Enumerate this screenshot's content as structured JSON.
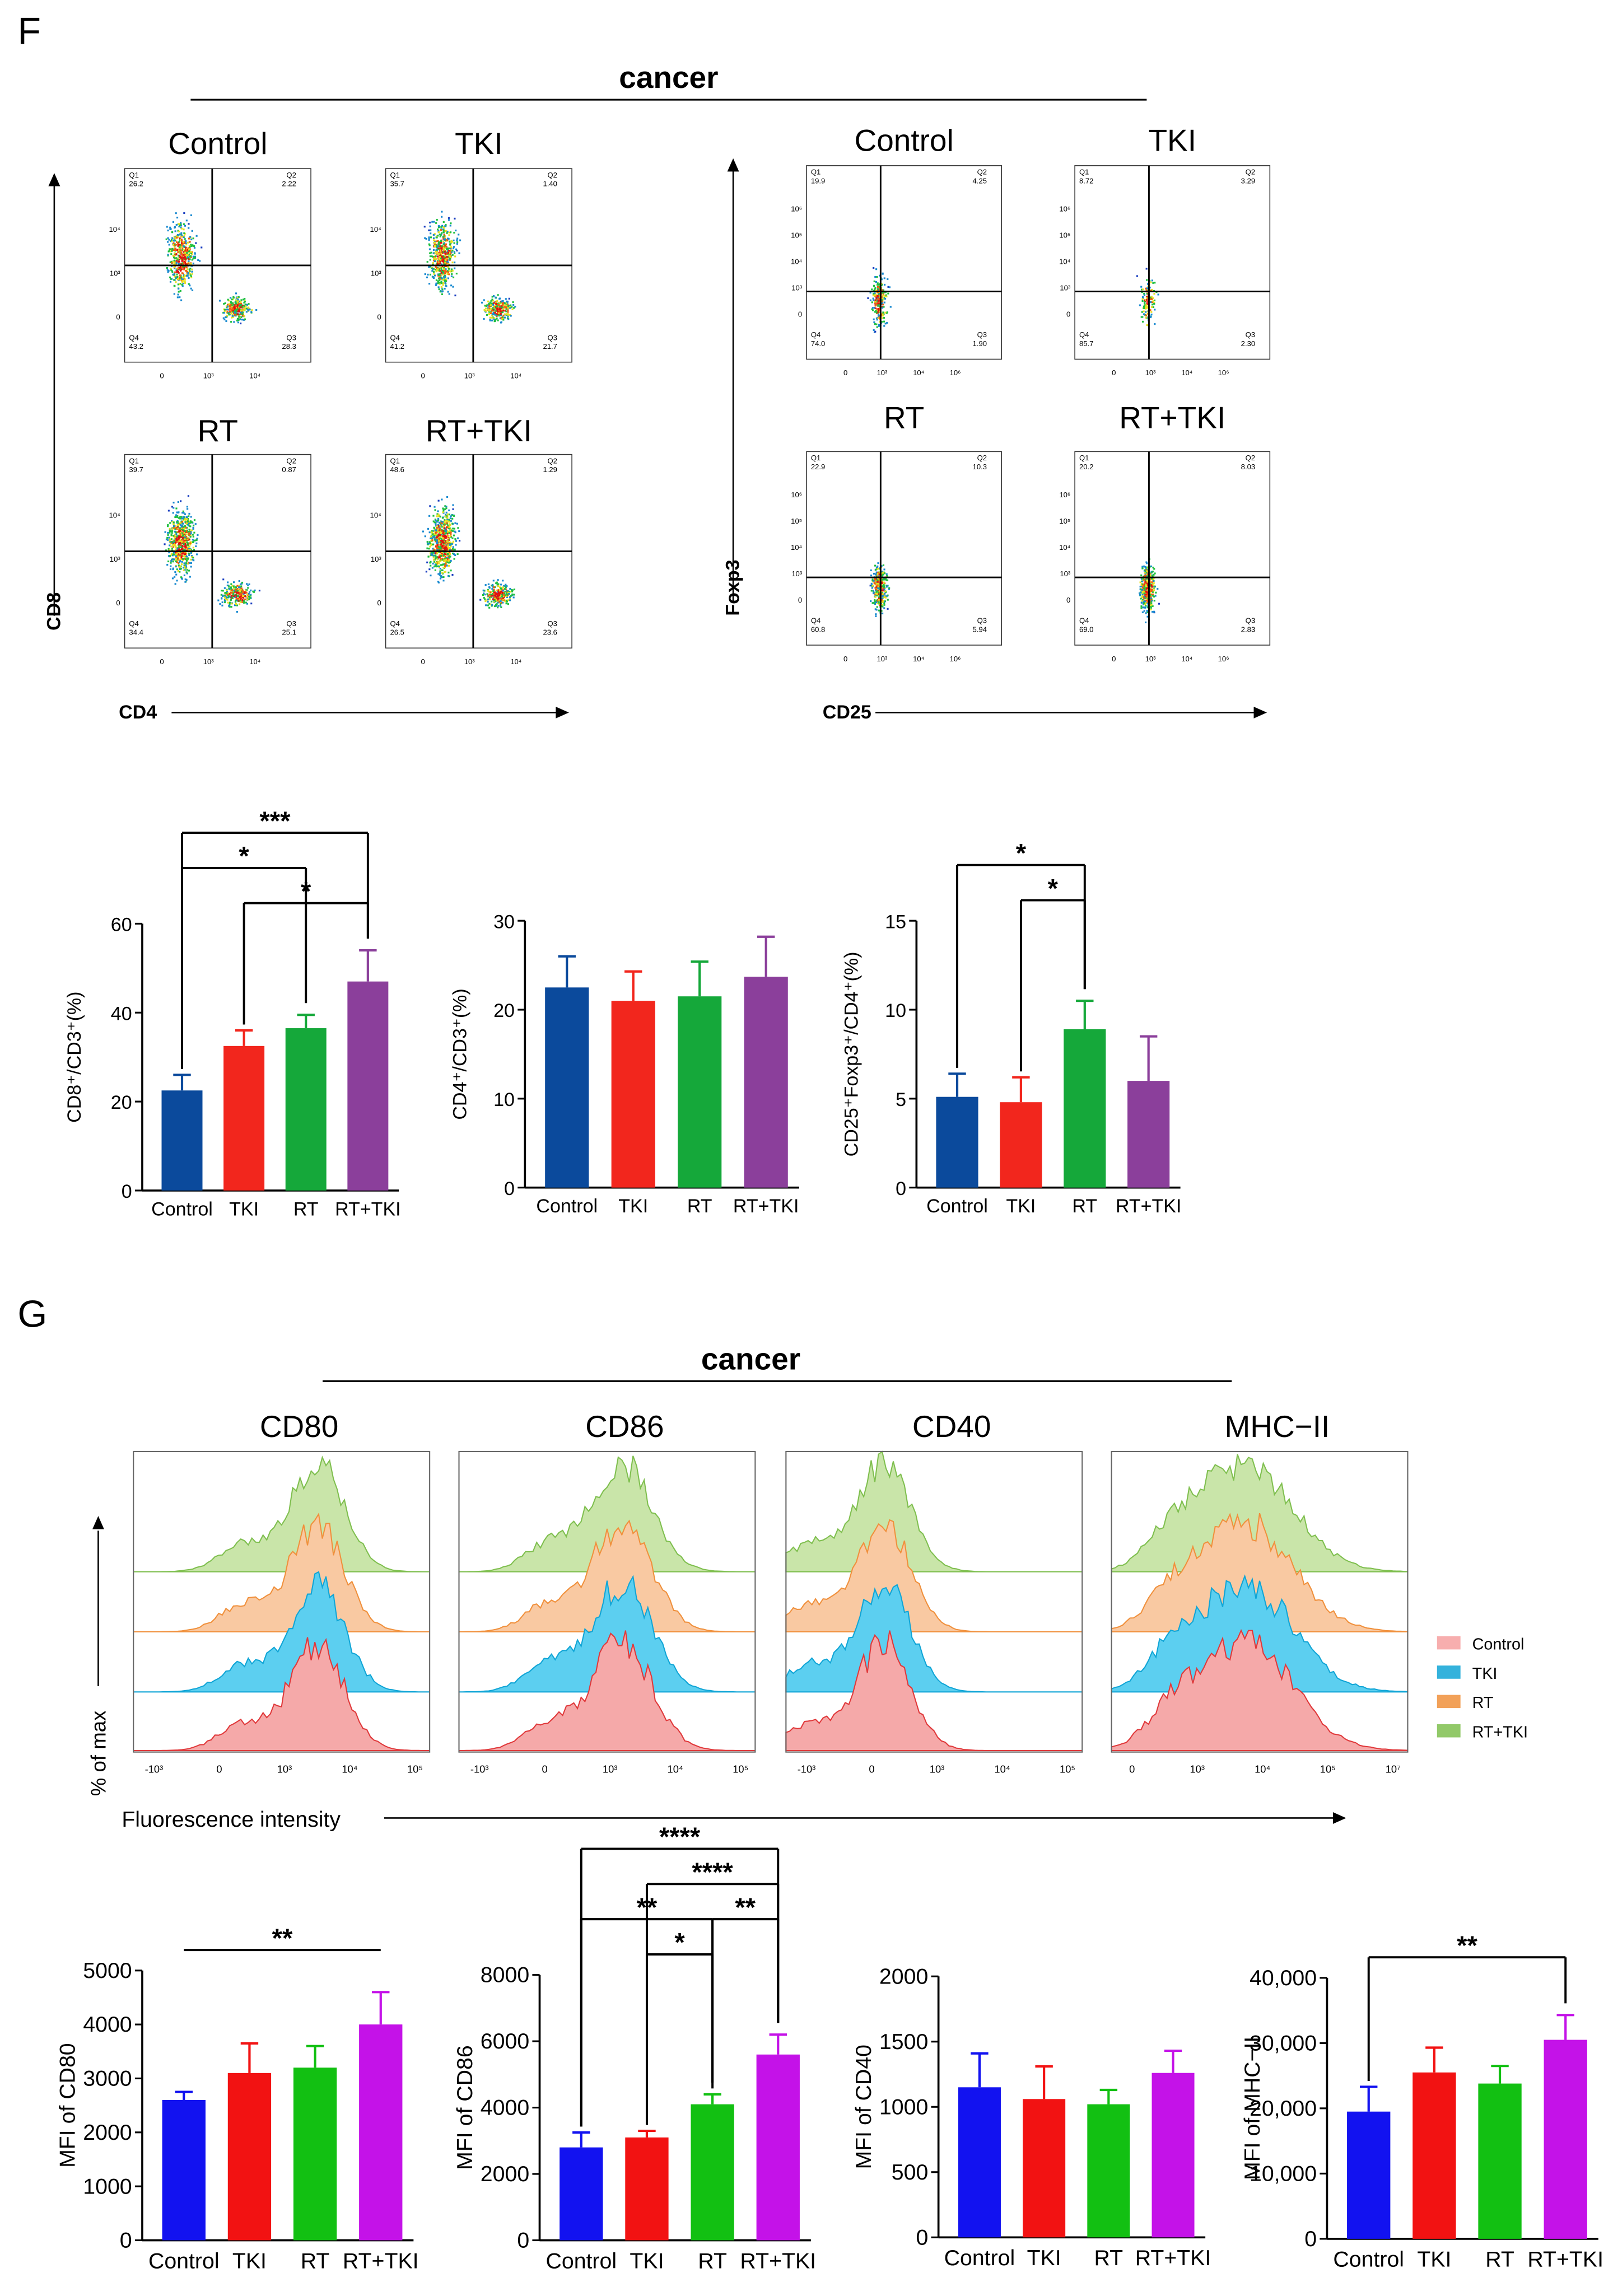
{
  "panel_labels": {
    "F": "F",
    "G": "G"
  },
  "flow": {
    "title": "cancer",
    "quadrant_names": [
      "Q1",
      "Q2",
      "Q3",
      "Q4"
    ],
    "left": {
      "xlabel": "CD4",
      "ylabel": "CD8",
      "xticks": [
        "0",
        "10³",
        "10⁴"
      ],
      "yticks": [
        "0",
        "10³",
        "10⁴"
      ],
      "plots": [
        {
          "name": "Control",
          "q": [
            "26.2",
            "2.22",
            "28.3",
            "43.2"
          ]
        },
        {
          "name": "TKI",
          "q": [
            "35.7",
            "1.40",
            "21.7",
            "41.2"
          ]
        },
        {
          "name": "RT",
          "q": [
            "39.7",
            "0.87",
            "25.1",
            "34.4"
          ]
        },
        {
          "name": "RT+TKI",
          "q": [
            "48.6",
            "1.29",
            "23.6",
            "26.5"
          ]
        }
      ]
    },
    "right": {
      "xlabel": "CD25",
      "ylabel": "Foxp3",
      "xticks": [
        "0",
        "10³",
        "10⁴",
        "10⁶"
      ],
      "yticks": [
        "0",
        "10³",
        "10⁴",
        "10⁵",
        "10⁶"
      ],
      "plots": [
        {
          "name": "Control",
          "q": [
            "19.9",
            "4.25",
            "1.90",
            "74.0"
          ]
        },
        {
          "name": "TKI",
          "q": [
            "8.72",
            "3.29",
            "2.30",
            "85.7"
          ]
        },
        {
          "name": "RT",
          "q": [
            "22.9",
            "10.3",
            "5.94",
            "60.8"
          ]
        },
        {
          "name": "RT+TKI",
          "q": [
            "20.2",
            "8.03",
            "2.83",
            "69.0"
          ]
        }
      ]
    }
  },
  "histograms": {
    "title": "cancer",
    "markers": [
      "CD80",
      "CD86",
      "CD40",
      "MHC−II"
    ],
    "xlabel": "Fluorescence intensity",
    "ylabel": "% of max",
    "xticks": [
      [
        "-10³",
        "0",
        "10³",
        "10⁴",
        "10⁵"
      ],
      [
        "-10³",
        "0",
        "10³",
        "10⁴",
        "10⁵"
      ],
      [
        "-10³",
        "0",
        "10³",
        "10⁴",
        "10⁵"
      ],
      [
        "0",
        "10³",
        "10⁴",
        "10⁵",
        "10⁷"
      ]
    ],
    "legend": [
      {
        "label": "Control",
        "fill": "#f5a9a9",
        "stroke": "#e0393b"
      },
      {
        "label": "TKI",
        "fill": "#5ccff0",
        "stroke": "#10a5d6"
      },
      {
        "label": "RT",
        "fill": "#f9c9a2",
        "stroke": "#f0903c"
      },
      {
        "label": "RT+TKI",
        "fill": "#c9e5a9",
        "stroke": "#7fbf4f"
      }
    ]
  },
  "chart_data": [
    {
      "type": "bar",
      "id": "F1",
      "ylabel": "CD8⁺/CD3⁺(%)",
      "categories": [
        "Control",
        "TKI",
        "RT",
        "RT+TKI"
      ],
      "values": [
        22.5,
        32.5,
        36.5,
        47
      ],
      "errors": [
        3.5,
        3.5,
        3,
        7
      ],
      "ylim": [
        0,
        60
      ],
      "yticks": [
        "0",
        "20",
        "40",
        "60"
      ],
      "colors": [
        "#0b4a9c",
        "#f2261d",
        "#15a83a",
        "#8b3f9b"
      ],
      "significance": [
        {
          "from": 0,
          "to": 3,
          "label": "***",
          "level": 2
        },
        {
          "from": 0,
          "to": 2,
          "label": "*",
          "level": 1
        },
        {
          "from": 1,
          "to": 3,
          "label": "*",
          "level": 0
        }
      ]
    },
    {
      "type": "bar",
      "id": "F2",
      "ylabel": "CD4⁺/CD3⁺(%)",
      "categories": [
        "Control",
        "TKI",
        "RT",
        "RT+TKI"
      ],
      "values": [
        22.5,
        21,
        21.5,
        23.7
      ],
      "errors": [
        3.5,
        3.3,
        3.9,
        4.5
      ],
      "ylim": [
        0,
        30
      ],
      "yticks": [
        "0",
        "10",
        "20",
        "30"
      ],
      "colors": [
        "#0b4a9c",
        "#f2261d",
        "#15a83a",
        "#8b3f9b"
      ],
      "significance": []
    },
    {
      "type": "bar",
      "id": "F3",
      "ylabel": "CD25⁺Foxp3⁺/CD4⁺(%)",
      "categories": [
        "Control",
        "TKI",
        "RT",
        "RT+TKI"
      ],
      "values": [
        5.1,
        4.8,
        8.9,
        6.0
      ],
      "errors": [
        1.3,
        1.4,
        1.6,
        2.5
      ],
      "ylim": [
        0,
        15
      ],
      "yticks": [
        "0",
        "5",
        "10",
        "15"
      ],
      "colors": [
        "#0b4a9c",
        "#f2261d",
        "#15a83a",
        "#8b3f9b"
      ],
      "significance": [
        {
          "from": 0,
          "to": 2,
          "label": "*",
          "level": 1
        },
        {
          "from": 1,
          "to": 2,
          "label": "*",
          "level": 0
        }
      ]
    },
    {
      "type": "bar",
      "id": "G1",
      "ylabel": "MFI of CD80",
      "categories": [
        "Control",
        "TKI",
        "RT",
        "RT+TKI"
      ],
      "values": [
        2600,
        3100,
        3200,
        4000
      ],
      "errors": [
        150,
        550,
        400,
        600
      ],
      "ylim": [
        0,
        5000
      ],
      "yticks": [
        "0",
        "1000",
        "2000",
        "3000",
        "4000",
        "5000"
      ],
      "colors": [
        "#1212f0",
        "#f21212",
        "#12c012",
        "#c412e8"
      ],
      "significance": [
        {
          "from": 0,
          "to": 3,
          "label": "**",
          "level": 0,
          "legs": false
        }
      ]
    },
    {
      "type": "bar",
      "id": "G2",
      "ylabel": "MFI of CD86",
      "categories": [
        "Control",
        "TKI",
        "RT",
        "RT+TKI"
      ],
      "values": [
        2800,
        3100,
        4100,
        5600
      ],
      "errors": [
        450,
        200,
        300,
        600
      ],
      "ylim": [
        0,
        8000
      ],
      "yticks": [
        "0",
        "2000",
        "4000",
        "6000",
        "8000"
      ],
      "colors": [
        "#1212f0",
        "#f21212",
        "#12c012",
        "#c412e8"
      ],
      "significance": [
        {
          "from": 0,
          "to": 3,
          "label": "****",
          "level": 3
        },
        {
          "from": 1,
          "to": 3,
          "label": "****",
          "level": 2
        },
        {
          "from": 0,
          "to": 2,
          "label": "**",
          "level": 1
        },
        {
          "from": 2,
          "to": 3,
          "label": "**",
          "level": 1
        },
        {
          "from": 1,
          "to": 2,
          "label": "*",
          "level": 0
        }
      ]
    },
    {
      "type": "bar",
      "id": "G3",
      "ylabel": "MFI of CD40",
      "categories": [
        "Control",
        "TKI",
        "RT",
        "RT+TKI"
      ],
      "values": [
        1150,
        1060,
        1020,
        1260
      ],
      "errors": [
        260,
        250,
        110,
        170
      ],
      "ylim": [
        0,
        2000
      ],
      "yticks": [
        "0",
        "500",
        "1000",
        "1500",
        "2000"
      ],
      "colors": [
        "#1212f0",
        "#f21212",
        "#12c012",
        "#c412e8"
      ],
      "significance": []
    },
    {
      "type": "bar",
      "id": "G4",
      "ylabel": "MFI of MHC−II",
      "categories": [
        "Control",
        "TKI",
        "RT",
        "RT+TKI"
      ],
      "values": [
        19500,
        25500,
        23800,
        30500
      ],
      "errors": [
        3800,
        3800,
        2700,
        3800
      ],
      "ylim": [
        0,
        40000
      ],
      "yticks": [
        "0",
        "10,000",
        "20,000",
        "30,000",
        "40,000"
      ],
      "colors": [
        "#1212f0",
        "#f21212",
        "#12c012",
        "#c412e8"
      ],
      "significance": [
        {
          "from": 0,
          "to": 3,
          "label": "**",
          "level": 0
        }
      ]
    }
  ]
}
